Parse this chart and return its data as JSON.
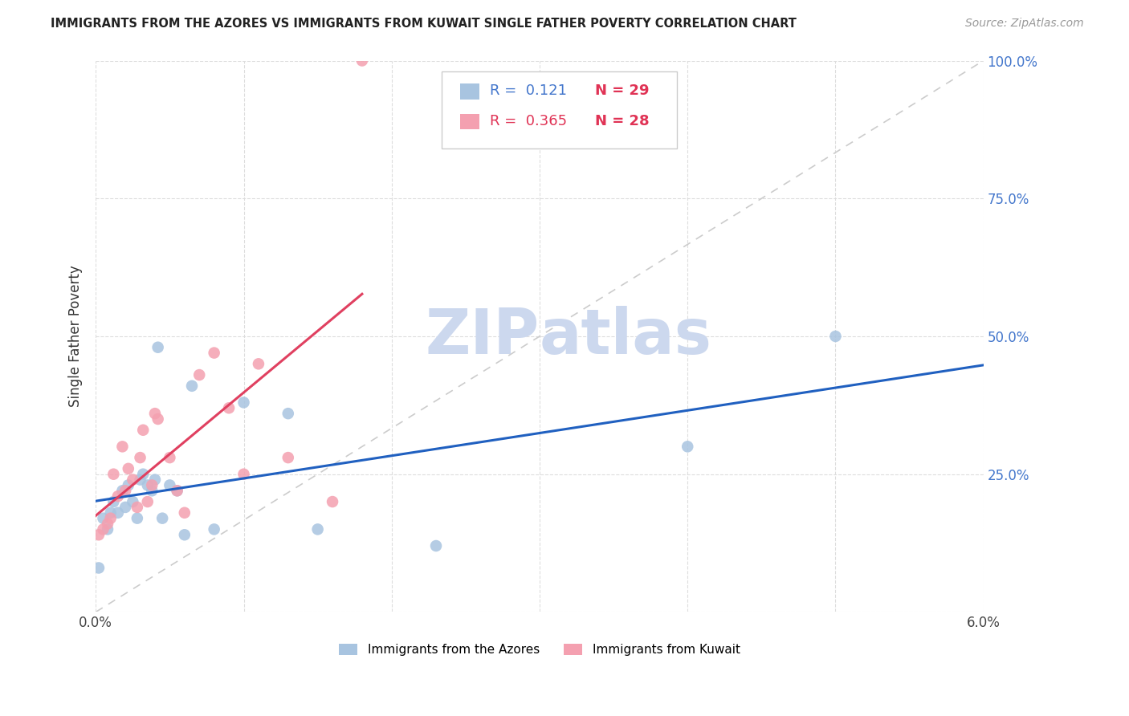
{
  "title": "IMMIGRANTS FROM THE AZORES VS IMMIGRANTS FROM KUWAIT SINGLE FATHER POVERTY CORRELATION CHART",
  "source": "Source: ZipAtlas.com",
  "ylabel": "Single Father Poverty",
  "xlim": [
    0.0,
    0.06
  ],
  "ylim": [
    0.0,
    1.0
  ],
  "r_azores": 0.121,
  "n_azores": 29,
  "r_kuwait": 0.365,
  "n_kuwait": 28,
  "color_azores": "#a8c4e0",
  "color_kuwait": "#f4a0b0",
  "line_color_azores": "#2060c0",
  "line_color_kuwait": "#e04060",
  "diagonal_color": "#cccccc",
  "watermark_color": "#ccd8ee",
  "azores_x": [
    0.0002,
    0.0005,
    0.0008,
    0.001,
    0.0012,
    0.0015,
    0.0018,
    0.002,
    0.0022,
    0.0025,
    0.0028,
    0.003,
    0.0032,
    0.0035,
    0.0038,
    0.004,
    0.0042,
    0.0045,
    0.005,
    0.0055,
    0.006,
    0.0065,
    0.008,
    0.01,
    0.013,
    0.015,
    0.023,
    0.04,
    0.05
  ],
  "azores_y": [
    0.08,
    0.17,
    0.15,
    0.18,
    0.2,
    0.18,
    0.22,
    0.19,
    0.23,
    0.2,
    0.17,
    0.24,
    0.25,
    0.23,
    0.22,
    0.24,
    0.48,
    0.17,
    0.23,
    0.22,
    0.14,
    0.41,
    0.15,
    0.38,
    0.36,
    0.15,
    0.12,
    0.3,
    0.5
  ],
  "kuwait_x": [
    0.0002,
    0.0005,
    0.0008,
    0.001,
    0.0012,
    0.0015,
    0.0018,
    0.002,
    0.0022,
    0.0025,
    0.0028,
    0.003,
    0.0032,
    0.0035,
    0.0038,
    0.004,
    0.0042,
    0.005,
    0.0055,
    0.006,
    0.007,
    0.008,
    0.009,
    0.01,
    0.011,
    0.013,
    0.016,
    0.018
  ],
  "kuwait_y": [
    0.14,
    0.15,
    0.16,
    0.17,
    0.25,
    0.21,
    0.3,
    0.22,
    0.26,
    0.24,
    0.19,
    0.28,
    0.33,
    0.2,
    0.23,
    0.36,
    0.35,
    0.28,
    0.22,
    0.18,
    0.43,
    0.47,
    0.37,
    0.25,
    0.45,
    0.28,
    0.2,
    1.0
  ]
}
